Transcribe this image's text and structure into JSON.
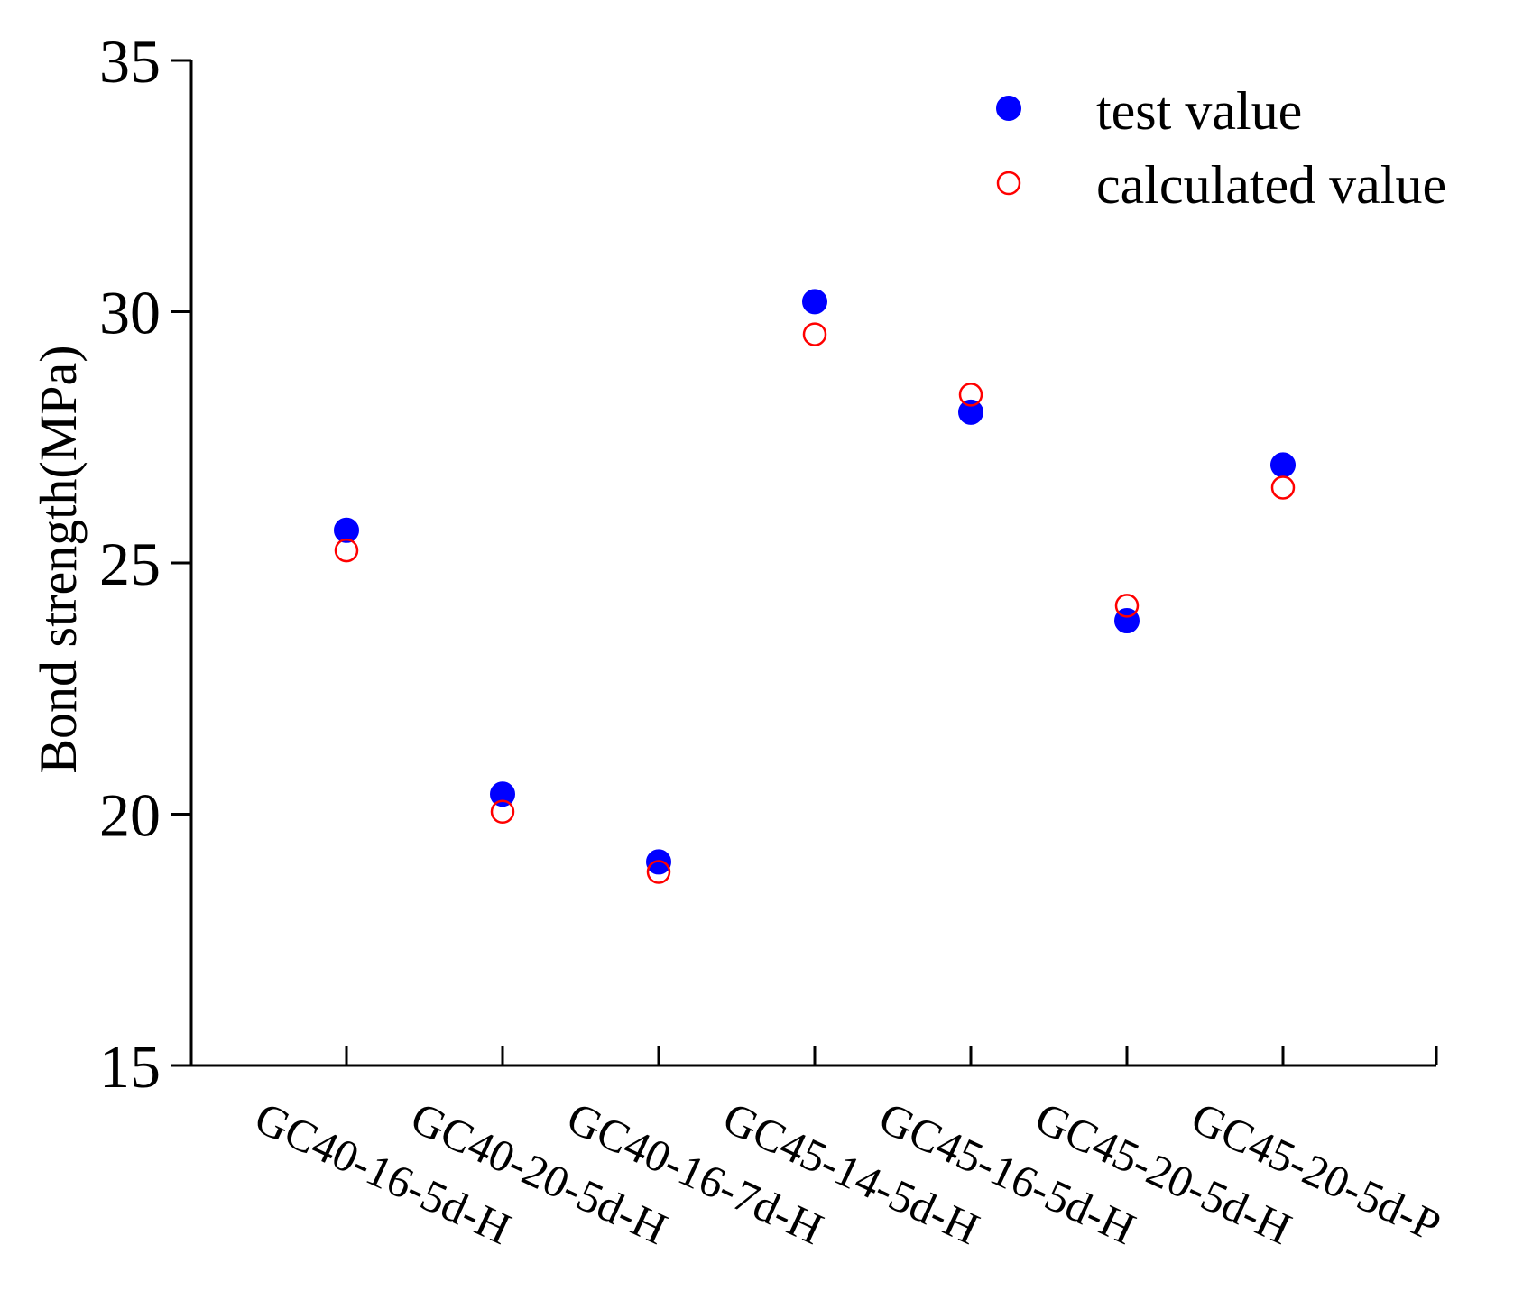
{
  "chart_data": {
    "type": "scatter",
    "title": "",
    "xlabel": "",
    "ylabel": "Bond strength(MPa)",
    "ylim": [
      15,
      35
    ],
    "yticks": [
      15,
      20,
      25,
      30,
      35
    ],
    "grid": false,
    "legend_position": "top-right",
    "categories": [
      "GC40-16-5d-H",
      "GC40-20-5d-H",
      "GC40-16-7d-H",
      "GC45-14-5d-H",
      "GC45-16-5d-H",
      "GC45-20-5d-H",
      "GC45-20-5d-P"
    ],
    "series": [
      {
        "name": "test value",
        "marker": "filled-circle",
        "color": "#0000ff",
        "values": [
          25.65,
          20.4,
          19.05,
          30.2,
          28.0,
          23.85,
          26.95
        ]
      },
      {
        "name": "calculated value",
        "marker": "open-circle",
        "color": "#ff0000",
        "values": [
          25.25,
          20.05,
          18.85,
          29.55,
          28.35,
          24.15,
          26.5
        ]
      }
    ]
  }
}
